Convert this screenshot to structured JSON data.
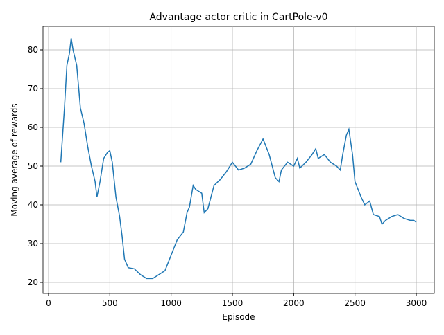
{
  "chart_data": {
    "type": "line",
    "title": "Advantage actor critic in CartPole-v0",
    "xlabel": "Episode",
    "ylabel": "Moving average of rewards",
    "x": [
      100,
      130,
      150,
      170,
      185,
      200,
      230,
      260,
      290,
      320,
      350,
      380,
      395,
      420,
      450,
      480,
      500,
      520,
      550,
      580,
      600,
      620,
      650,
      700,
      750,
      800,
      850,
      900,
      950,
      1000,
      1050,
      1100,
      1130,
      1150,
      1180,
      1200,
      1250,
      1270,
      1300,
      1350,
      1400,
      1450,
      1500,
      1550,
      1600,
      1650,
      1700,
      1750,
      1800,
      1850,
      1880,
      1900,
      1950,
      2000,
      2030,
      2050,
      2100,
      2150,
      2180,
      2200,
      2250,
      2300,
      2350,
      2380,
      2400,
      2430,
      2450,
      2480,
      2500,
      2550,
      2580,
      2620,
      2650,
      2700,
      2720,
      2750,
      2800,
      2850,
      2900,
      2950,
      2980,
      3000
    ],
    "series": [
      {
        "name": "Moving average of rewards",
        "color": "#1f77b4",
        "values": [
          51,
          65,
          76,
          79,
          83,
          80,
          76,
          65,
          61,
          55,
          50,
          46,
          42,
          46,
          52,
          53.5,
          54,
          51,
          42,
          37,
          32,
          26,
          23.8,
          23.5,
          22,
          21,
          21,
          22,
          23,
          27,
          31,
          33,
          38,
          39.5,
          45,
          44,
          43,
          38,
          39,
          45,
          46.5,
          48.5,
          51,
          49,
          49.5,
          50.5,
          54,
          57,
          53,
          47,
          46,
          49,
          51,
          50,
          52,
          49.5,
          51,
          53,
          54.5,
          52,
          53,
          51,
          50,
          49,
          53,
          58,
          59.5,
          53,
          46,
          42,
          40,
          41,
          37.5,
          37,
          35,
          36,
          37,
          37.5,
          36.5,
          36,
          36,
          35.5
        ]
      }
    ],
    "xlim": [
      -45,
      3147
    ],
    "ylim": [
      17.14,
      86.07
    ],
    "xticks": [
      0,
      500,
      1000,
      1500,
      2000,
      2500,
      3000
    ],
    "yticks": [
      20,
      30,
      40,
      50,
      60,
      70,
      80
    ],
    "grid": true
  }
}
